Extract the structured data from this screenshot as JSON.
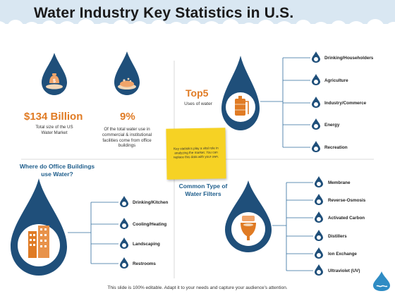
{
  "slide": {
    "title": "Water Industry Key Statistics in U.S."
  },
  "stats": {
    "market": {
      "value": "$134 Billion",
      "description": "Total size of the US Water Market"
    },
    "office_use": {
      "value": "9%",
      "description": "Of the total water use in commercial & institutional facilities come from office buildings"
    }
  },
  "top5": {
    "title": "Top5",
    "subtitle": "Uses of water",
    "items": [
      "Drinking/Householders",
      "Agriculture",
      "Industry/Commerce",
      "Energy",
      "Recreation"
    ]
  },
  "office_buildings": {
    "title": "Where do Office Buildings use Water?",
    "items": [
      "Drinking/Kitchen",
      "Cooling/Heating",
      "Landscaping",
      "Restrooms"
    ]
  },
  "filters": {
    "title": "Common Type of Water Filters",
    "items": [
      "Membrane",
      "Reverse-Osmosis",
      "Activated Carbon",
      "Distillers",
      "Ion Exchange",
      "Ultraviolet (UV)"
    ]
  },
  "sticky_note": {
    "text": "Key statistics play a vital role in analyzing the market. You can replace this data with your own."
  },
  "footer": {
    "text": "This slide is 100% editable. Adapt it to your needs and capture your audience's attention."
  },
  "colors": {
    "drop_dark": "#1f4f7a",
    "drop_mid": "#2f6d9e",
    "accent_orange": "#e07b24",
    "sticky_yellow": "#f6d224",
    "line_blue": "#2f6d9e"
  },
  "icons": {
    "market": "money-bag-icon",
    "office_use": "water-bowl-icon",
    "top5": "water-tank-icon",
    "office_buildings": "office-building-icon",
    "filters": "toilet-icon",
    "small_drops": "water-drop-icon"
  }
}
